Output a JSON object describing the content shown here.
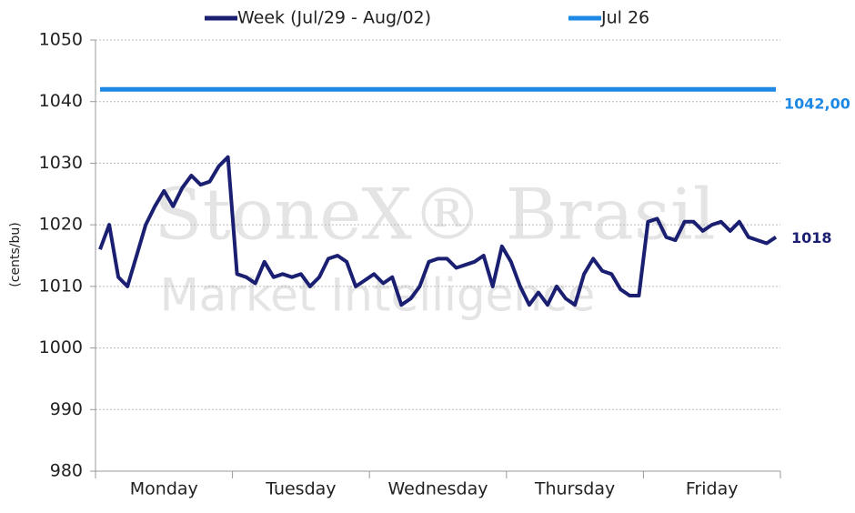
{
  "chart_data": {
    "type": "line",
    "y_label": "(cents/bu)",
    "watermark": [
      "StoneX® Brasil",
      "Market Intelligence"
    ],
    "categories": [
      null,
      null,
      null,
      null,
      null,
      null,
      null,
      "Monday",
      null,
      null,
      null,
      null,
      null,
      null,
      null,
      null,
      null,
      null,
      null,
      null,
      null,
      null,
      "Tuesday",
      null,
      null,
      null,
      null,
      null,
      null,
      null,
      null,
      null,
      null,
      null,
      null,
      null,
      null,
      "Wednesday",
      null,
      null,
      null,
      null,
      null,
      null,
      null,
      null,
      null,
      null,
      null,
      null,
      null,
      null,
      "Thursday",
      null,
      null,
      null,
      null,
      null,
      null,
      null,
      null,
      null,
      null,
      null,
      null,
      null,
      null,
      "Friday",
      null,
      null,
      null,
      null,
      null,
      null,
      null
    ],
    "series": [
      {
        "name": "Week (Jul/29 - Aug/02)",
        "color": "#1a1f71",
        "values": [
          1016,
          1020,
          1011.5,
          1010,
          1015,
          1020,
          1023,
          1025.5,
          1023,
          1026,
          1028,
          1026.5,
          1027,
          1029.5,
          1031,
          1012,
          1011.5,
          1010.5,
          1014,
          1011.5,
          1012,
          1011.5,
          1012,
          1010,
          1011.5,
          1014.5,
          1015,
          1014,
          1010,
          1011,
          1012,
          1010.5,
          1011.5,
          1007,
          1008,
          1010,
          1014,
          1014.5,
          1014.5,
          1013,
          1013.5,
          1014,
          1015,
          1010,
          1016.5,
          1014,
          1010,
          1007,
          1009,
          1007,
          1010,
          1008,
          1007,
          1012,
          1014.5,
          1012.5,
          1012,
          1009.5,
          1008.5,
          1008.5,
          1020.5,
          1021,
          1018,
          1017.5,
          1020.5,
          1020.5,
          1019,
          1020,
          1020.5,
          1019,
          1020.5,
          1018,
          1017.5,
          1017,
          1018
        ]
      },
      {
        "name": "Jul 26",
        "color": "#1e88e5",
        "values": [
          1042,
          1042,
          1042,
          1042,
          1042,
          1042,
          1042,
          1042,
          1042,
          1042,
          1042,
          1042,
          1042,
          1042,
          1042,
          1042,
          1042,
          1042,
          1042,
          1042,
          1042,
          1042,
          1042,
          1042,
          1042,
          1042,
          1042,
          1042,
          1042,
          1042,
          1042,
          1042,
          1042,
          1042,
          1042,
          1042,
          1042,
          1042,
          1042,
          1042,
          1042,
          1042,
          1042,
          1042,
          1042,
          1042,
          1042,
          1042,
          1042,
          1042,
          1042,
          1042,
          1042,
          1042,
          1042,
          1042,
          1042,
          1042,
          1042,
          1042,
          1042,
          1042,
          1042,
          1042,
          1042,
          1042,
          1042,
          1042,
          1042,
          1042,
          1042,
          1042,
          1042,
          1042,
          1042
        ],
        "value_labels": [
          null,
          null,
          null,
          null,
          null,
          null,
          null,
          null,
          null,
          null,
          null,
          null,
          null,
          null,
          null,
          null,
          null,
          null,
          null,
          null,
          null,
          null,
          null,
          null,
          null,
          null,
          null,
          null,
          null,
          null,
          null,
          null,
          null,
          null,
          null,
          null,
          null,
          null,
          null,
          null,
          null,
          null,
          null,
          null,
          null,
          null,
          null,
          null,
          null,
          null,
          null,
          null,
          null,
          null,
          null,
          null,
          null,
          null,
          null,
          null,
          null,
          null,
          null,
          null,
          null,
          null,
          null,
          null,
          null,
          null,
          null,
          null,
          null,
          null,
          "1042,00"
        ]
      }
    ],
    "ylim": [
      980,
      1050
    ],
    "yticks": [
      980,
      990,
      1000,
      1010,
      1020,
      1030,
      1040,
      1050
    ],
    "grid": true,
    "legend": "top"
  }
}
